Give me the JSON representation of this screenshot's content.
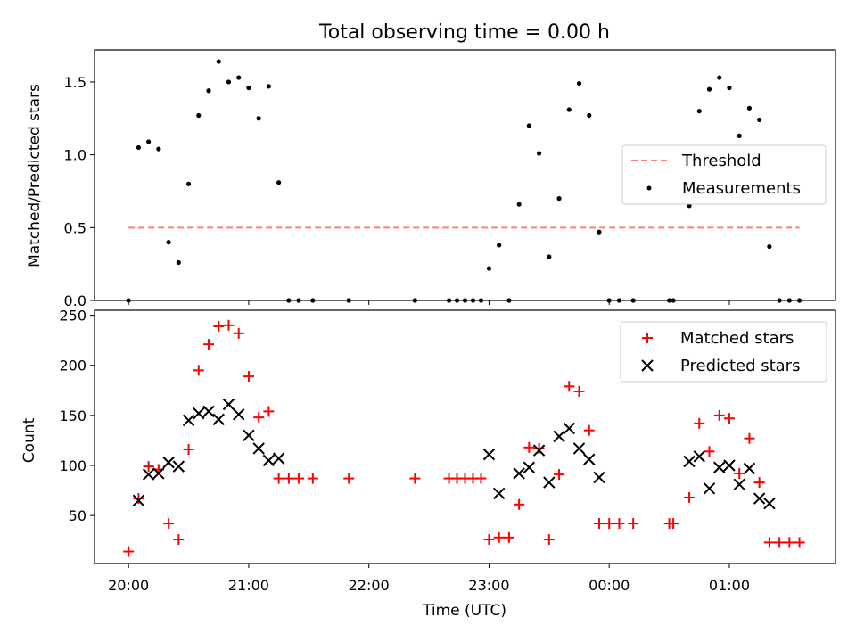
{
  "chart_data": [
    {
      "type": "scatter",
      "title": "Total observing time = 0.00 h",
      "xlabel": "",
      "ylabel": "Matched/Predicted stars",
      "ylim": [
        0,
        1.72
      ],
      "yticks": [
        0.0,
        0.5,
        1.0,
        1.5
      ],
      "xlim": [
        "19:43",
        "01:53"
      ],
      "grid": false,
      "legend": "center-right",
      "series": [
        {
          "name": "Threshold",
          "kind": "dashed-line",
          "color": "#ff7f7f",
          "points": [
            [
              "20:00",
              0.5
            ],
            [
              "01:35",
              0.5
            ]
          ]
        },
        {
          "name": "Measurements",
          "kind": "points",
          "color": "#000000",
          "points": [
            [
              "20:00",
              0.0
            ],
            [
              "20:05",
              1.05
            ],
            [
              "20:10",
              1.09
            ],
            [
              "20:15",
              1.04
            ],
            [
              "20:20",
              0.4
            ],
            [
              "20:25",
              0.26
            ],
            [
              "20:30",
              0.8
            ],
            [
              "20:35",
              1.27
            ],
            [
              "20:40",
              1.44
            ],
            [
              "20:45",
              1.64
            ],
            [
              "20:50",
              1.5
            ],
            [
              "20:55",
              1.53
            ],
            [
              "21:00",
              1.46
            ],
            [
              "21:05",
              1.25
            ],
            [
              "21:10",
              1.47
            ],
            [
              "21:15",
              0.81
            ],
            [
              "21:20",
              0.0
            ],
            [
              "21:25",
              0.0
            ],
            [
              "21:32",
              0.0
            ],
            [
              "21:50",
              0.0
            ],
            [
              "22:23",
              0.0
            ],
            [
              "22:40",
              0.0
            ],
            [
              "22:44",
              0.0
            ],
            [
              "22:48",
              0.0
            ],
            [
              "22:52",
              0.0
            ],
            [
              "22:56",
              0.0
            ],
            [
              "23:00",
              0.22
            ],
            [
              "23:05",
              0.38
            ],
            [
              "23:10",
              0.0
            ],
            [
              "23:15",
              0.66
            ],
            [
              "23:20",
              1.2
            ],
            [
              "23:25",
              1.01
            ],
            [
              "23:30",
              0.3
            ],
            [
              "23:35",
              0.7
            ],
            [
              "23:40",
              1.31
            ],
            [
              "23:45",
              1.49
            ],
            [
              "23:50",
              1.27
            ],
            [
              "23:55",
              0.47
            ],
            [
              "00:00",
              0.0
            ],
            [
              "00:05",
              0.0
            ],
            [
              "00:12",
              0.0
            ],
            [
              "00:30",
              0.0
            ],
            [
              "00:32",
              0.0
            ],
            [
              "00:40",
              0.65
            ],
            [
              "00:45",
              1.3
            ],
            [
              "00:50",
              1.45
            ],
            [
              "00:55",
              1.53
            ],
            [
              "01:00",
              1.46
            ],
            [
              "01:05",
              1.13
            ],
            [
              "01:10",
              1.32
            ],
            [
              "01:15",
              1.24
            ],
            [
              "01:20",
              0.37
            ],
            [
              "01:25",
              0.0
            ],
            [
              "01:30",
              0.0
            ],
            [
              "01:35",
              0.0
            ]
          ]
        }
      ]
    },
    {
      "type": "scatter",
      "title": "",
      "xlabel": "Time (UTC)",
      "ylabel": "Count",
      "ylim": [
        2,
        255
      ],
      "yticks": [
        50,
        100,
        150,
        200,
        250
      ],
      "xlim": [
        "19:43",
        "01:53"
      ],
      "xticks": [
        "20:00",
        "21:00",
        "22:00",
        "23:00",
        "00:00",
        "01:00"
      ],
      "grid": false,
      "legend": "top-right",
      "series": [
        {
          "name": "Matched stars",
          "marker": "plus",
          "color": "#ff0000",
          "points": [
            [
              "20:00",
              14
            ],
            [
              "20:05",
              67
            ],
            [
              "20:10",
              99
            ],
            [
              "20:15",
              96
            ],
            [
              "20:20",
              42
            ],
            [
              "20:25",
              26
            ],
            [
              "20:30",
              116
            ],
            [
              "20:35",
              195
            ],
            [
              "20:40",
              221
            ],
            [
              "20:45",
              239
            ],
            [
              "20:50",
              240
            ],
            [
              "20:55",
              232
            ],
            [
              "21:00",
              189
            ],
            [
              "21:05",
              148
            ],
            [
              "21:10",
              154
            ],
            [
              "21:15",
              87
            ],
            [
              "21:20",
              87
            ],
            [
              "21:25",
              87
            ],
            [
              "21:32",
              87
            ],
            [
              "21:50",
              87
            ],
            [
              "22:23",
              87
            ],
            [
              "22:40",
              87
            ],
            [
              "22:44",
              87
            ],
            [
              "22:48",
              87
            ],
            [
              "22:52",
              87
            ],
            [
              "22:56",
              87
            ],
            [
              "23:00",
              26
            ],
            [
              "23:05",
              28
            ],
            [
              "23:10",
              28
            ],
            [
              "23:15",
              61
            ],
            [
              "23:20",
              118
            ],
            [
              "23:25",
              117
            ],
            [
              "23:30",
              26
            ],
            [
              "23:35",
              91
            ],
            [
              "23:40",
              179
            ],
            [
              "23:45",
              174
            ],
            [
              "23:50",
              135
            ],
            [
              "23:55",
              42
            ],
            [
              "00:00",
              42
            ],
            [
              "00:05",
              42
            ],
            [
              "00:12",
              42
            ],
            [
              "00:30",
              42
            ],
            [
              "00:32",
              42
            ],
            [
              "00:40",
              68
            ],
            [
              "00:45",
              142
            ],
            [
              "00:50",
              114
            ],
            [
              "00:55",
              150
            ],
            [
              "01:00",
              147
            ],
            [
              "01:05",
              92
            ],
            [
              "01:10",
              127
            ],
            [
              "01:15",
              83
            ],
            [
              "01:20",
              23
            ],
            [
              "01:25",
              23
            ],
            [
              "01:30",
              23
            ],
            [
              "01:35",
              23
            ]
          ]
        },
        {
          "name": "Predicted stars",
          "marker": "x",
          "color": "#000000",
          "points": [
            [
              "20:05",
              65
            ],
            [
              "20:10",
              91
            ],
            [
              "20:15",
              92
            ],
            [
              "20:20",
              103
            ],
            [
              "20:25",
              99
            ],
            [
              "20:30",
              145
            ],
            [
              "20:35",
              152
            ],
            [
              "20:40",
              154
            ],
            [
              "20:45",
              146
            ],
            [
              "20:50",
              161
            ],
            [
              "20:55",
              151
            ],
            [
              "21:00",
              130
            ],
            [
              "21:05",
              117
            ],
            [
              "21:10",
              105
            ],
            [
              "21:15",
              107
            ],
            [
              "23:00",
              111
            ],
            [
              "23:05",
              72
            ],
            [
              "23:15",
              92
            ],
            [
              "23:20",
              98
            ],
            [
              "23:25",
              115
            ],
            [
              "23:30",
              83
            ],
            [
              "23:35",
              129
            ],
            [
              "23:40",
              137
            ],
            [
              "23:45",
              117
            ],
            [
              "23:50",
              106
            ],
            [
              "23:55",
              88
            ],
            [
              "00:40",
              104
            ],
            [
              "00:45",
              109
            ],
            [
              "00:50",
              77
            ],
            [
              "00:55",
              98
            ],
            [
              "01:00",
              100
            ],
            [
              "01:05",
              81
            ],
            [
              "01:10",
              97
            ],
            [
              "01:15",
              67
            ],
            [
              "01:20",
              62
            ]
          ]
        }
      ]
    }
  ]
}
